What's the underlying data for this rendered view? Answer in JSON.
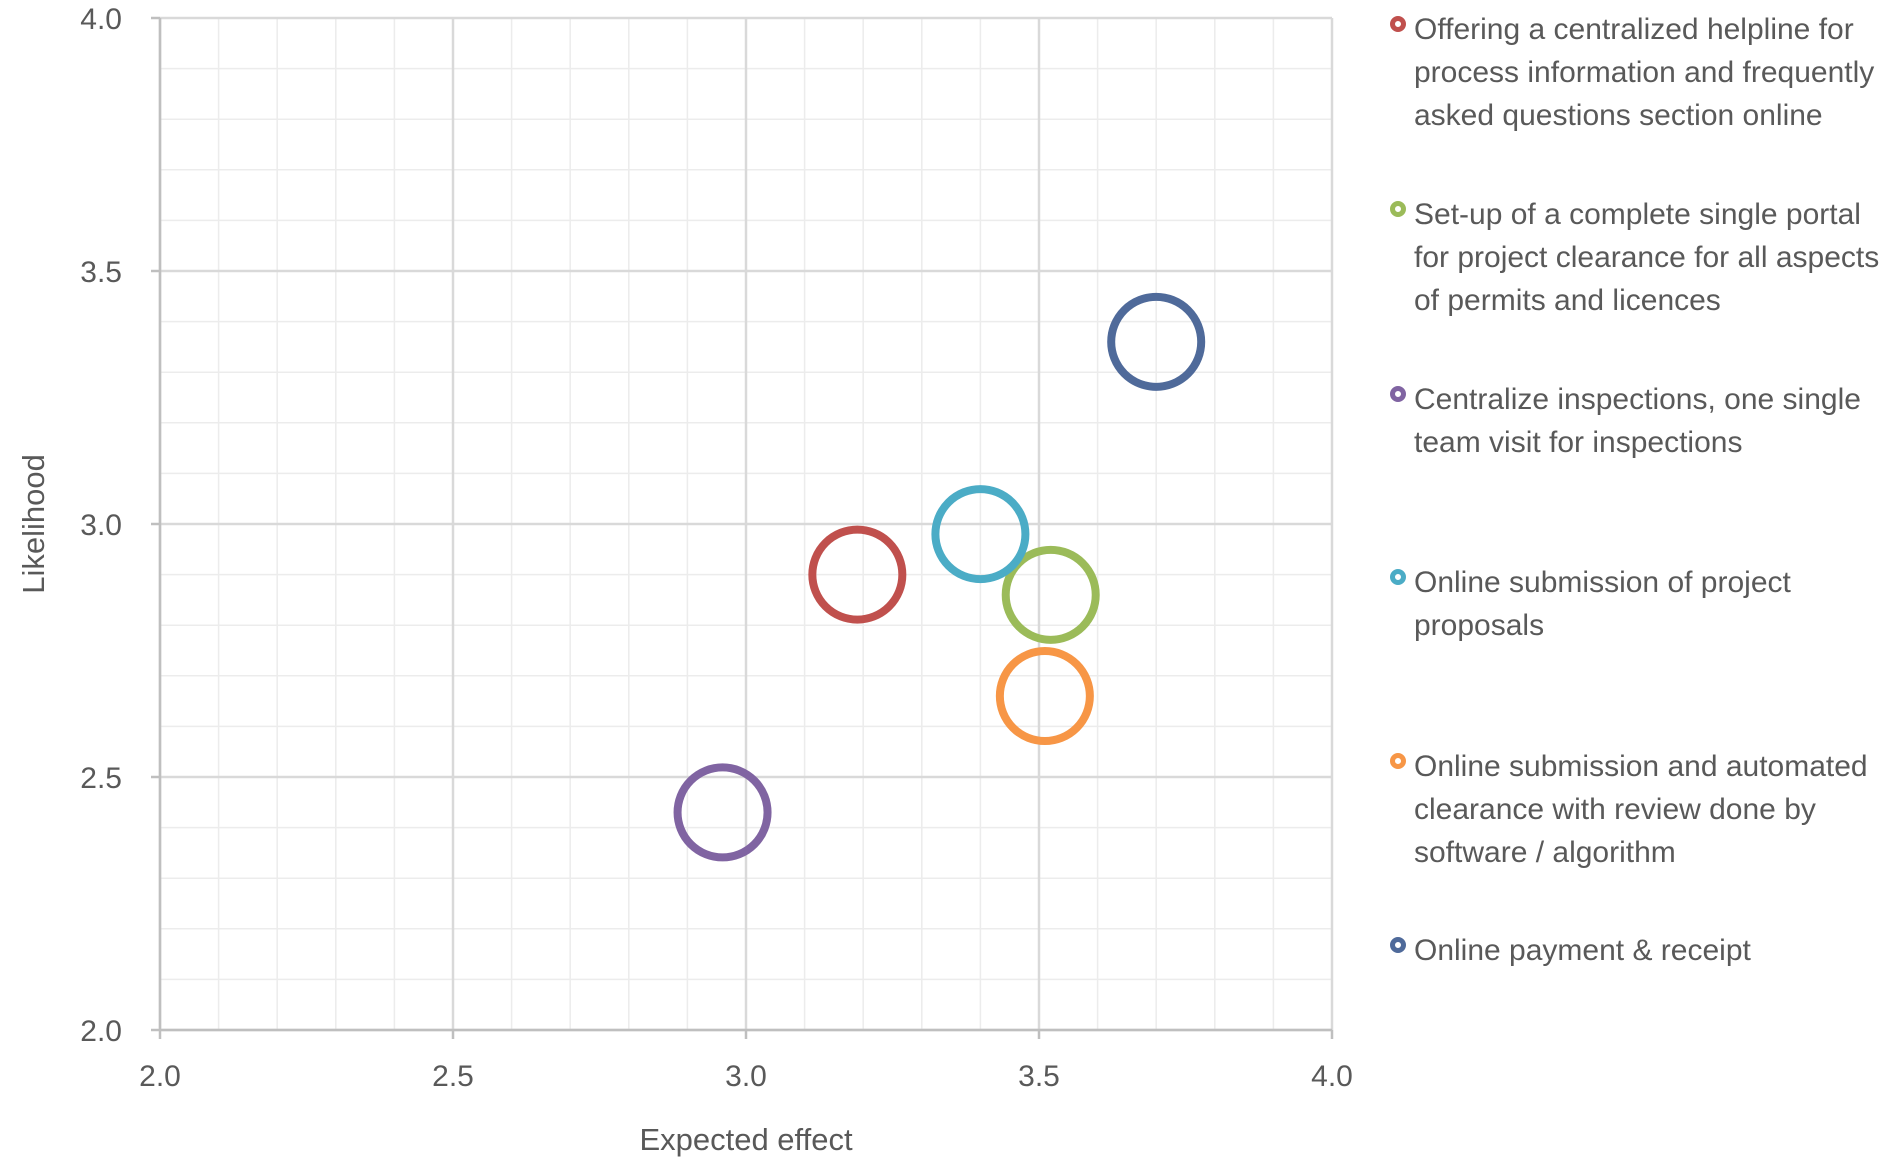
{
  "chart_data": {
    "type": "scatter",
    "xlabel": "Expected effect",
    "ylabel": "Likelihood",
    "xlim": [
      2.0,
      4.0
    ],
    "ylim": [
      2.0,
      4.0
    ],
    "x_ticks": [
      "2.0",
      "2.5",
      "3.0",
      "3.5",
      "4.0"
    ],
    "y_ticks": [
      "2.0",
      "2.5",
      "3.0",
      "3.5",
      "4.0"
    ],
    "grid": "major and minor",
    "legend_position": "right",
    "marker": "open-circle",
    "series": [
      {
        "name": "Offering a centralized helpline for process information and frequently asked questions section online",
        "color": "#c0504d",
        "x": 3.19,
        "y": 2.9
      },
      {
        "name": "Set-up of a complete single portal for project clearance for all aspects of permits and licences",
        "color": "#9bbb59",
        "x": 3.52,
        "y": 2.86
      },
      {
        "name": "Centralize inspections, one single team visit for inspections",
        "color": "#8064a2",
        "x": 2.96,
        "y": 2.43
      },
      {
        "name": "Online submission of project proposals",
        "color": "#4bacc6",
        "x": 3.4,
        "y": 2.98
      },
      {
        "name": "Online submission and automated clearance with review done by software / algorithm",
        "color": "#f79646",
        "x": 3.51,
        "y": 2.66
      },
      {
        "name": "Online payment & receipt",
        "color": "#4f6a9a",
        "x": 3.7,
        "y": 3.36
      }
    ]
  }
}
